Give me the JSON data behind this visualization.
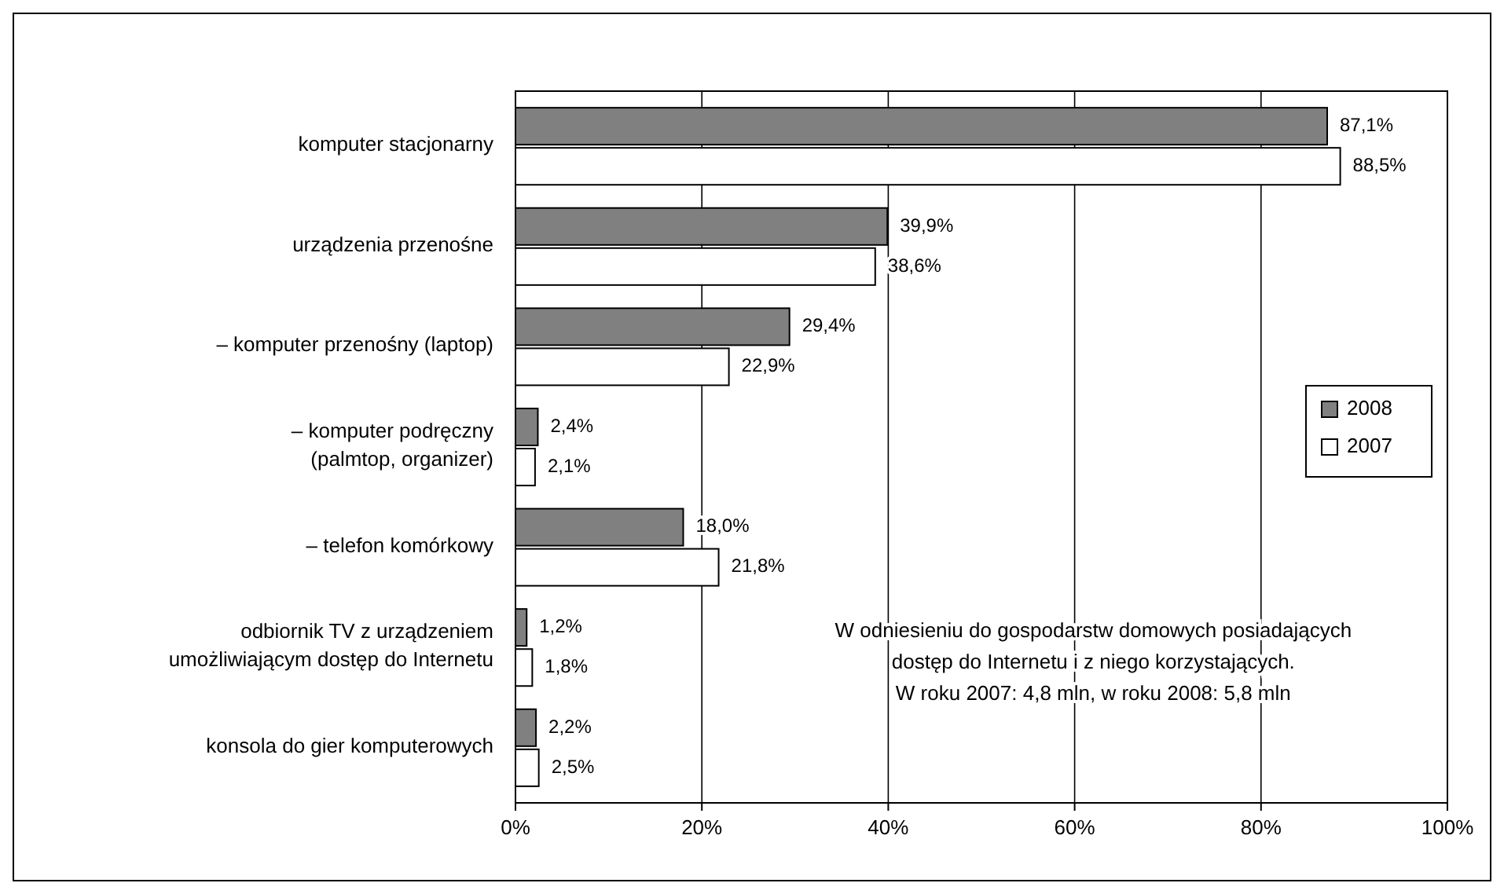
{
  "chart_data": {
    "type": "bar",
    "orientation": "horizontal",
    "categories": [
      "komputer stacjonarny",
      "urządzenia przenośne",
      "– komputer przenośny  (laptop)",
      "– komputer podręczny\n(palmtop, organizer)",
      "– telefon komórkowy",
      "odbiornik TV z urządzeniem\numożliwiającym dostęp do Internetu",
      "konsola do gier komputerowych"
    ],
    "series": [
      {
        "name": "2008",
        "color": "#808080",
        "values": [
          87.1,
          39.9,
          29.4,
          2.4,
          18.0,
          1.2,
          2.2
        ],
        "value_labels": [
          "87,1%",
          "39,9%",
          "29,4%",
          "2,4%",
          "18,0%",
          "1,2%",
          "2,2%"
        ]
      },
      {
        "name": "2007",
        "color": "#ffffff",
        "values": [
          88.5,
          38.6,
          22.9,
          2.1,
          21.8,
          1.8,
          2.5
        ],
        "value_labels": [
          "88,5%",
          "38,6%",
          "22,9%",
          "2,1%",
          "21,8%",
          "1,8%",
          "2,5%"
        ]
      }
    ],
    "xlim": [
      0,
      100
    ],
    "xticks": [
      {
        "value": 0,
        "label": "0%"
      },
      {
        "value": 20,
        "label": "20%"
      },
      {
        "value": 40,
        "label": "40%"
      },
      {
        "value": 60,
        "label": "60%"
      },
      {
        "value": 80,
        "label": "80%"
      },
      {
        "value": 100,
        "label": "100%"
      }
    ],
    "grid": "x",
    "legend": "right",
    "annotations": [
      "W odniesieniu do gospodarstw domowych posiadających\ndostęp do Internetu i z niego korzystających.\nW roku 2007: 4,8 mln, w roku 2008: 5,8 mln"
    ]
  }
}
